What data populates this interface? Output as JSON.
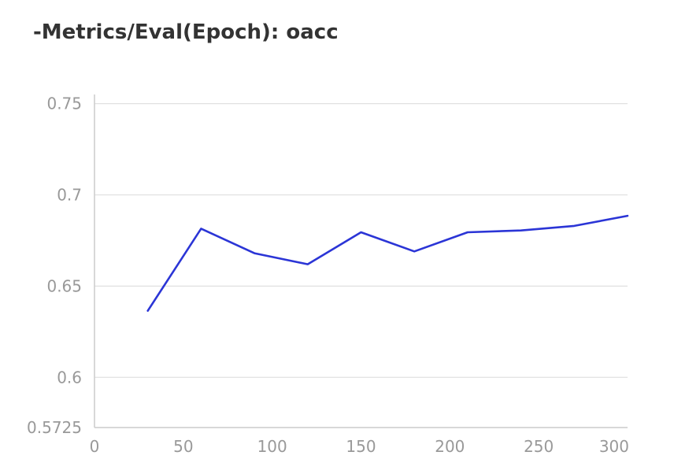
{
  "chart_data": {
    "type": "line",
    "title": "-Metrics/Eval(Epoch): oacc",
    "xlabel": "",
    "ylabel": "",
    "xlim": [
      0,
      300
    ],
    "ylim": [
      0.5725,
      0.755
    ],
    "grid": true,
    "legend": "none",
    "x_ticks": [
      0,
      50,
      100,
      150,
      200,
      250,
      300
    ],
    "x_tick_labels": [
      "0",
      "50",
      "100",
      "150",
      "200",
      "250",
      "300"
    ],
    "y_ticks": [
      0.5725,
      0.6,
      0.65,
      0.7,
      0.75
    ],
    "y_tick_labels": [
      "0.5725",
      "0.6",
      "0.65",
      "0.7",
      "0.75"
    ],
    "series": [
      {
        "color": "#2b35d6",
        "x": [
          30,
          60,
          90,
          120,
          150,
          180,
          210,
          240,
          270,
          300
        ],
        "y": [
          0.6365,
          0.6815,
          0.668,
          0.662,
          0.6795,
          0.669,
          0.6795,
          0.6805,
          0.683,
          0.6885
        ]
      }
    ]
  }
}
